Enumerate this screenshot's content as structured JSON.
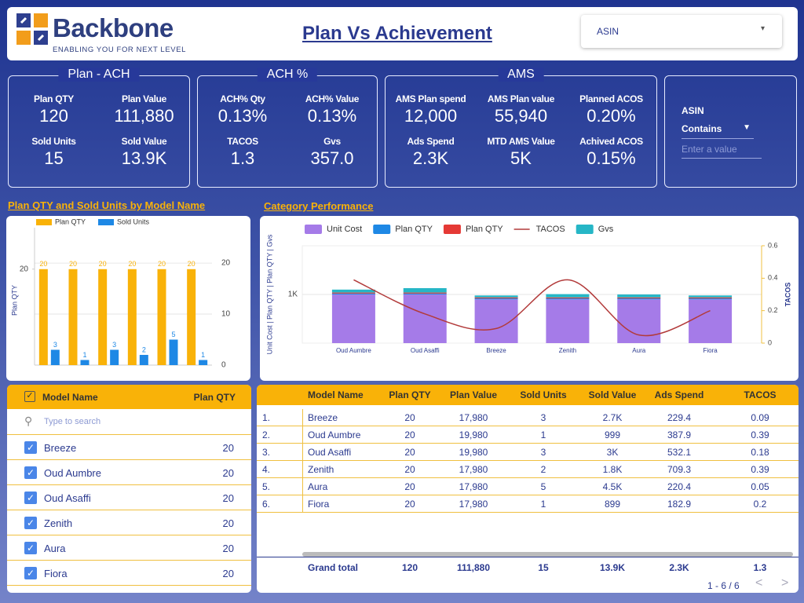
{
  "header": {
    "brand": "Backbone",
    "tagline": "ENABLING YOU FOR NEXT LEVEL",
    "title": "Plan Vs Achievement",
    "asin_dropdown": "ASIN"
  },
  "kpi_panels": [
    {
      "title": "Plan - ACH",
      "items": [
        {
          "label": "Plan QTY",
          "value": "120"
        },
        {
          "label": "Plan Value",
          "value": "111,880"
        },
        {
          "label": "Sold Units",
          "value": "15"
        },
        {
          "label": "Sold Value",
          "value": "13.9K"
        }
      ]
    },
    {
      "title": "ACH %",
      "items": [
        {
          "label": "ACH% Qty",
          "value": "0.13%"
        },
        {
          "label": "ACH% Value",
          "value": "0.13%"
        },
        {
          "label": "TACOS",
          "value": "1.3"
        },
        {
          "label": "Gvs",
          "value": "357.0"
        }
      ]
    },
    {
      "title": "AMS",
      "items": [
        {
          "label": "AMS Plan spend",
          "value": "12,000"
        },
        {
          "label": "AMS Plan value",
          "value": "55,940"
        },
        {
          "label": "Planned ACOS",
          "value": "0.20%"
        },
        {
          "label": "Ads Spend",
          "value": "2.3K"
        },
        {
          "label": "MTD AMS Value",
          "value": "5K"
        },
        {
          "label": "Achived ACOS",
          "value": "0.15%"
        }
      ]
    }
  ],
  "asin_filter": {
    "label": "ASIN",
    "operator": "Contains",
    "placeholder": "Enter a value"
  },
  "chart_data": [
    {
      "type": "bar",
      "title": "Plan QTY and Sold Units by Model Name",
      "categories": [
        null,
        null,
        null,
        null,
        null,
        null
      ],
      "y_label": "Plan QTY",
      "series": [
        {
          "name": "Plan QTY",
          "color": "#f9b208",
          "values": [
            20,
            20,
            20,
            20,
            20,
            20
          ]
        },
        {
          "name": "Sold Units",
          "color": "#1e88e5",
          "values": [
            3,
            1,
            3,
            2,
            5,
            1
          ],
          "axis": "y2"
        }
      ],
      "ylim": [
        0,
        27
      ],
      "yticks": [
        20
      ],
      "y2lim": [
        0,
        25.4
      ],
      "y2ticks": [
        0,
        10,
        20
      ],
      "grid": true
    },
    {
      "type": "combo",
      "title": "Category Performance",
      "categories": [
        "Oud Aumbre",
        "Oud Asaffi",
        "Breeze",
        "Zenith",
        "Aura",
        "Fiora"
      ],
      "y_label": "Unit Cost | Plan QTY | Plan QTY | Gvs",
      "y2_label": "TACOS",
      "series": [
        {
          "name": "Unit Cost",
          "type": "bar",
          "color": "#a57be8",
          "values": [
            999,
            999,
            899,
            899,
            899,
            899
          ]
        },
        {
          "name": "Plan QTY",
          "type": "bar",
          "color": "#1e88e5",
          "values": [
            20,
            20,
            20,
            20,
            20,
            20
          ]
        },
        {
          "name": "Plan QTY",
          "type": "bar",
          "color": "#e53935",
          "values": [
            20,
            20,
            20,
            20,
            20,
            20
          ]
        },
        {
          "name": "TACOS",
          "type": "line",
          "color": "#b23a3a",
          "axis": "y2",
          "values": [
            0.39,
            0.18,
            0.09,
            0.39,
            0.05,
            0.2
          ]
        },
        {
          "name": "Gvs",
          "type": "bar",
          "color": "#26b6c6",
          "values": [
            60,
            90,
            40,
            67,
            60,
            40
          ]
        }
      ],
      "ylim": [
        0,
        2000
      ],
      "yticks": [
        {
          "value": 1000,
          "label": "1K"
        }
      ],
      "y2lim": [
        0,
        0.6
      ],
      "y2ticks": [
        0,
        0.2,
        0.4,
        0.6
      ],
      "grid": true
    }
  ],
  "model_filter": {
    "header": [
      "Model Name",
      "Plan QTY"
    ],
    "search_placeholder": "Type to search",
    "items": [
      [
        "Breeze",
        20
      ],
      [
        "Oud Aumbre",
        20
      ],
      [
        "Oud Asaffi",
        20
      ],
      [
        "Zenith",
        20
      ],
      [
        "Aura",
        20
      ],
      [
        "Fiora",
        20
      ]
    ]
  },
  "table": {
    "columns": [
      "Model Name",
      "Plan QTY",
      "Plan Value",
      "Sold Units",
      "Sold Value",
      "Ads Spend",
      "TACOS"
    ],
    "rows": [
      [
        "1.",
        "Breeze",
        20,
        "17,980",
        3,
        "2.7K",
        229.4,
        0.09
      ],
      [
        "2.",
        "Oud Aumbre",
        20,
        "19,980",
        1,
        999,
        387.9,
        0.39
      ],
      [
        "3.",
        "Oud Asaffi",
        20,
        "19,980",
        3,
        "3K",
        532.1,
        0.18
      ],
      [
        "4.",
        "Zenith",
        20,
        "17,980",
        2,
        "1.8K",
        709.3,
        0.39
      ],
      [
        "5.",
        "Aura",
        20,
        "17,980",
        5,
        "4.5K",
        220.4,
        0.05
      ],
      [
        "6.",
        "Fiora",
        20,
        "17,980",
        1,
        899,
        182.9,
        0.2
      ]
    ],
    "total": [
      "Grand total",
      120,
      "111,880",
      15,
      "13.9K",
      "2.3K",
      1.3
    ],
    "pagination": "1 - 6 / 6"
  }
}
